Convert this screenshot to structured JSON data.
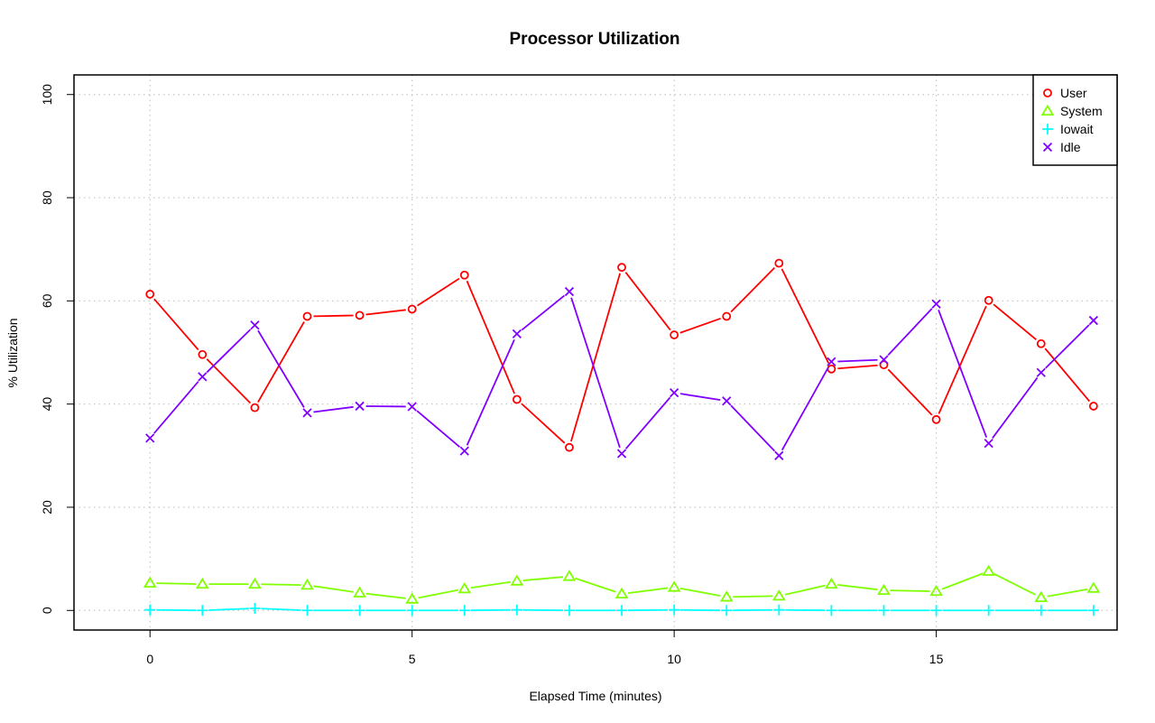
{
  "chart_data": {
    "type": "line",
    "title": "Processor Utilization",
    "xlabel": "Elapsed Time (minutes)",
    "ylabel": "% Utilization",
    "xlim": [
      -1.45,
      18.45
    ],
    "ylim": [
      -3.8,
      103.8
    ],
    "x_ticks": [
      0,
      5,
      10,
      15
    ],
    "y_ticks": [
      0,
      20,
      40,
      60,
      80,
      100
    ],
    "grid": true,
    "legend_position": "top-right",
    "x": [
      0,
      1,
      2,
      3,
      4,
      5,
      6,
      7,
      8,
      9,
      10,
      11,
      12,
      13,
      14,
      15,
      16,
      17,
      18
    ],
    "series": [
      {
        "name": "User",
        "color": "#FF0000",
        "marker": "circle",
        "values": [
          61.3,
          49.6,
          39.3,
          57.0,
          57.2,
          58.4,
          65.0,
          40.9,
          31.6,
          66.5,
          53.4,
          57.0,
          67.3,
          46.8,
          47.6,
          37.0,
          60.1,
          51.7,
          39.6
        ]
      },
      {
        "name": "System",
        "color": "#80FF00",
        "marker": "triangle",
        "values": [
          5.3,
          5.1,
          5.1,
          4.9,
          3.4,
          2.2,
          4.2,
          5.7,
          6.6,
          3.2,
          4.5,
          2.6,
          2.8,
          5.1,
          3.9,
          3.7,
          7.6,
          2.5,
          4.3
        ]
      },
      {
        "name": "Iowait",
        "color": "#00FFFF",
        "marker": "plus",
        "values": [
          0.1,
          0.0,
          0.4,
          0.0,
          0.0,
          0.0,
          0.0,
          0.1,
          0.0,
          0.0,
          0.1,
          0.0,
          0.1,
          0.0,
          0.0,
          0.0,
          0.0,
          0.0,
          0.0
        ]
      },
      {
        "name": "Idle",
        "color": "#8000FF",
        "marker": "x",
        "values": [
          33.4,
          45.3,
          55.3,
          38.3,
          39.6,
          39.5,
          30.9,
          53.6,
          61.8,
          30.4,
          42.2,
          40.6,
          30.0,
          48.2,
          48.6,
          59.4,
          32.4,
          46.1,
          56.2
        ]
      }
    ]
  }
}
